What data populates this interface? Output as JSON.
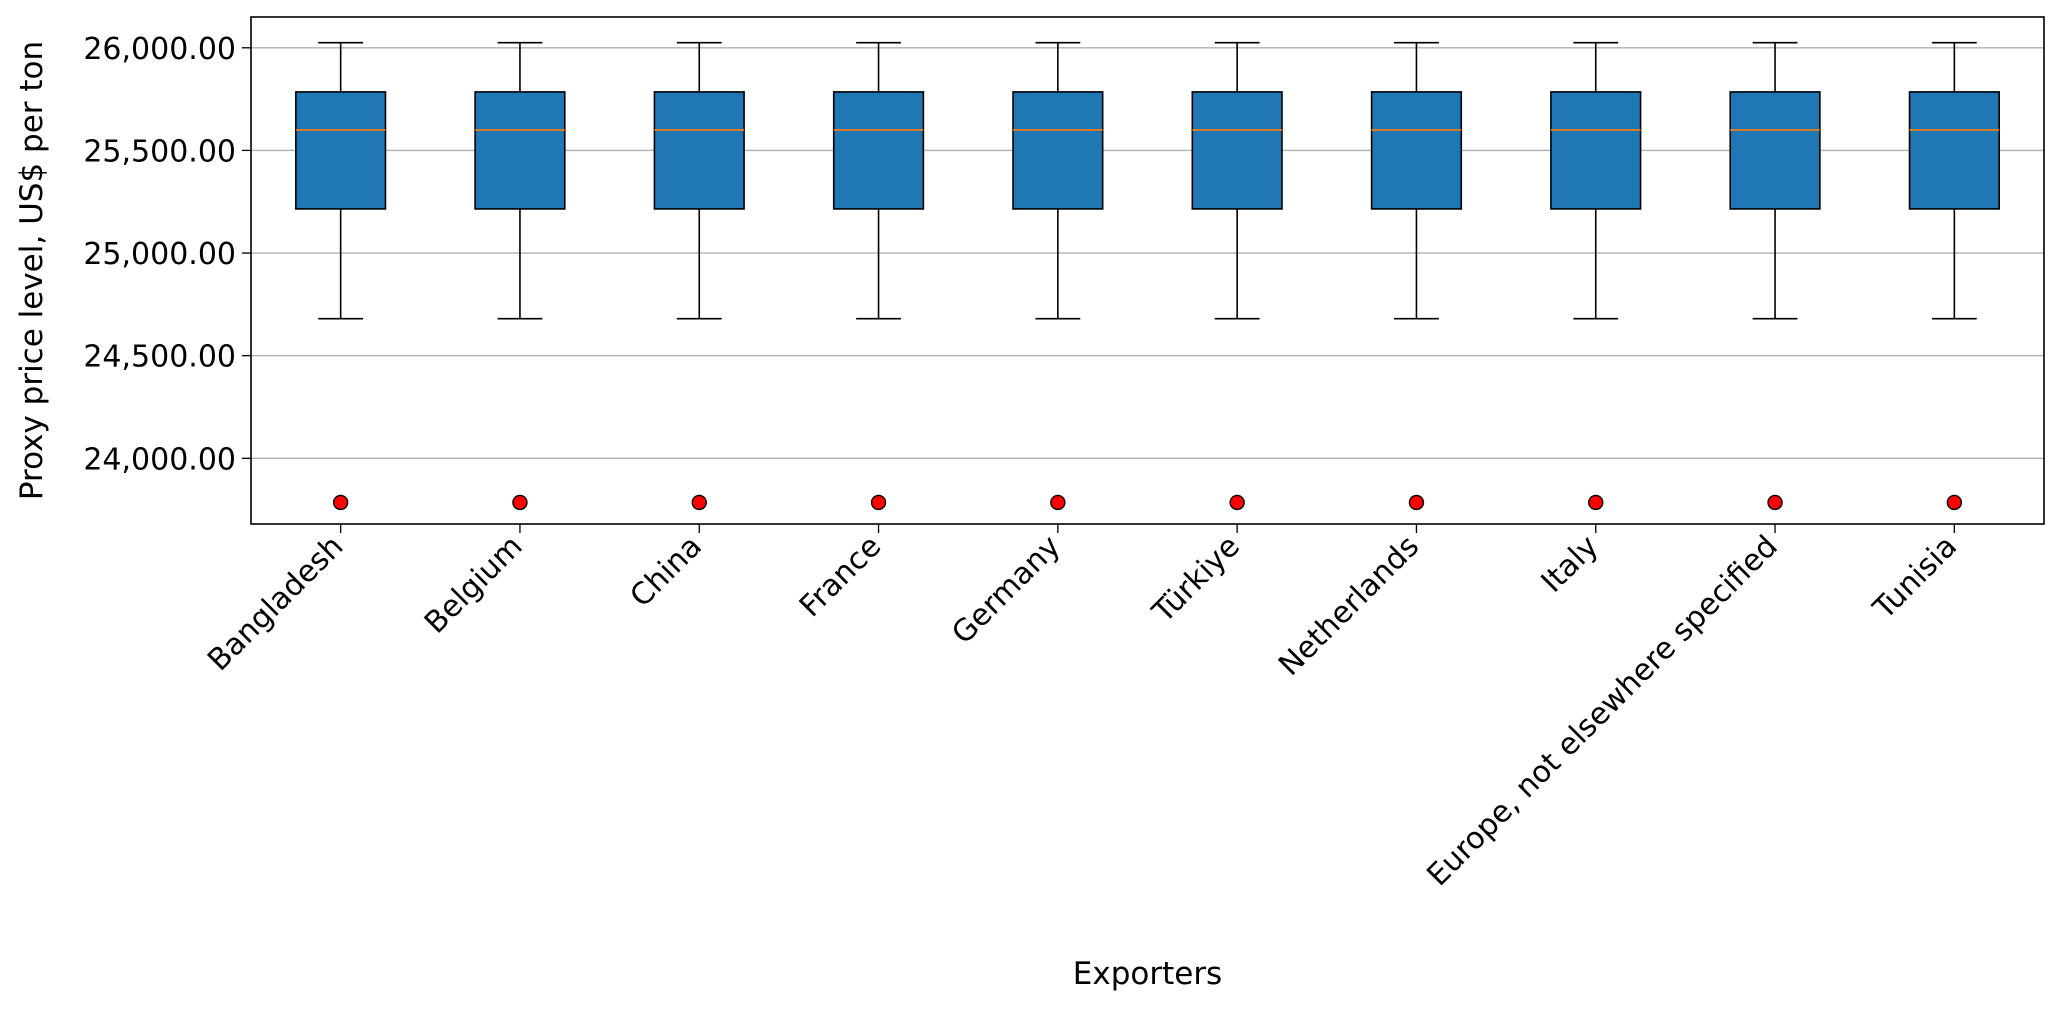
{
  "chart_data": {
    "type": "boxplot",
    "title": "",
    "xlabel": "Exporters",
    "ylabel": "Proxy price level, US$ per ton",
    "ylim": [
      23680,
      26150
    ],
    "yticks": [
      24000,
      24500,
      25000,
      25500,
      26000
    ],
    "ytick_labels": [
      "24,000.00",
      "24,500.00",
      "25,000.00",
      "25,500.00",
      "26,000.00"
    ],
    "grid": "horizontal",
    "colors": {
      "box_fill": "#1f77b4",
      "median": "#ff7f0e",
      "outlier": "#ff0000",
      "grid": "#b0b0b0"
    },
    "categories": [
      "Bangladesh",
      "Belgium",
      "China",
      "France",
      "Germany",
      "Türkiye",
      "Netherlands",
      "Italy",
      "Europe, not elsewhere specified",
      "Tunisia"
    ],
    "boxes": [
      {
        "whisker_low": 24680,
        "q1": 25215,
        "median": 25600,
        "q3": 25785,
        "whisker_high": 26025,
        "outliers": [
          23785
        ]
      },
      {
        "whisker_low": 24680,
        "q1": 25215,
        "median": 25600,
        "q3": 25785,
        "whisker_high": 26025,
        "outliers": [
          23785
        ]
      },
      {
        "whisker_low": 24680,
        "q1": 25215,
        "median": 25600,
        "q3": 25785,
        "whisker_high": 26025,
        "outliers": [
          23785
        ]
      },
      {
        "whisker_low": 24680,
        "q1": 25215,
        "median": 25600,
        "q3": 25785,
        "whisker_high": 26025,
        "outliers": [
          23785
        ]
      },
      {
        "whisker_low": 24680,
        "q1": 25215,
        "median": 25600,
        "q3": 25785,
        "whisker_high": 26025,
        "outliers": [
          23785
        ]
      },
      {
        "whisker_low": 24680,
        "q1": 25215,
        "median": 25600,
        "q3": 25785,
        "whisker_high": 26025,
        "outliers": [
          23785
        ]
      },
      {
        "whisker_low": 24680,
        "q1": 25215,
        "median": 25600,
        "q3": 25785,
        "whisker_high": 26025,
        "outliers": [
          23785
        ]
      },
      {
        "whisker_low": 24680,
        "q1": 25215,
        "median": 25600,
        "q3": 25785,
        "whisker_high": 26025,
        "outliers": [
          23785
        ]
      },
      {
        "whisker_low": 24680,
        "q1": 25215,
        "median": 25600,
        "q3": 25785,
        "whisker_high": 26025,
        "outliers": [
          23785
        ]
      },
      {
        "whisker_low": 24680,
        "q1": 25215,
        "median": 25600,
        "q3": 25785,
        "whisker_high": 26025,
        "outliers": [
          23785
        ]
      }
    ]
  }
}
